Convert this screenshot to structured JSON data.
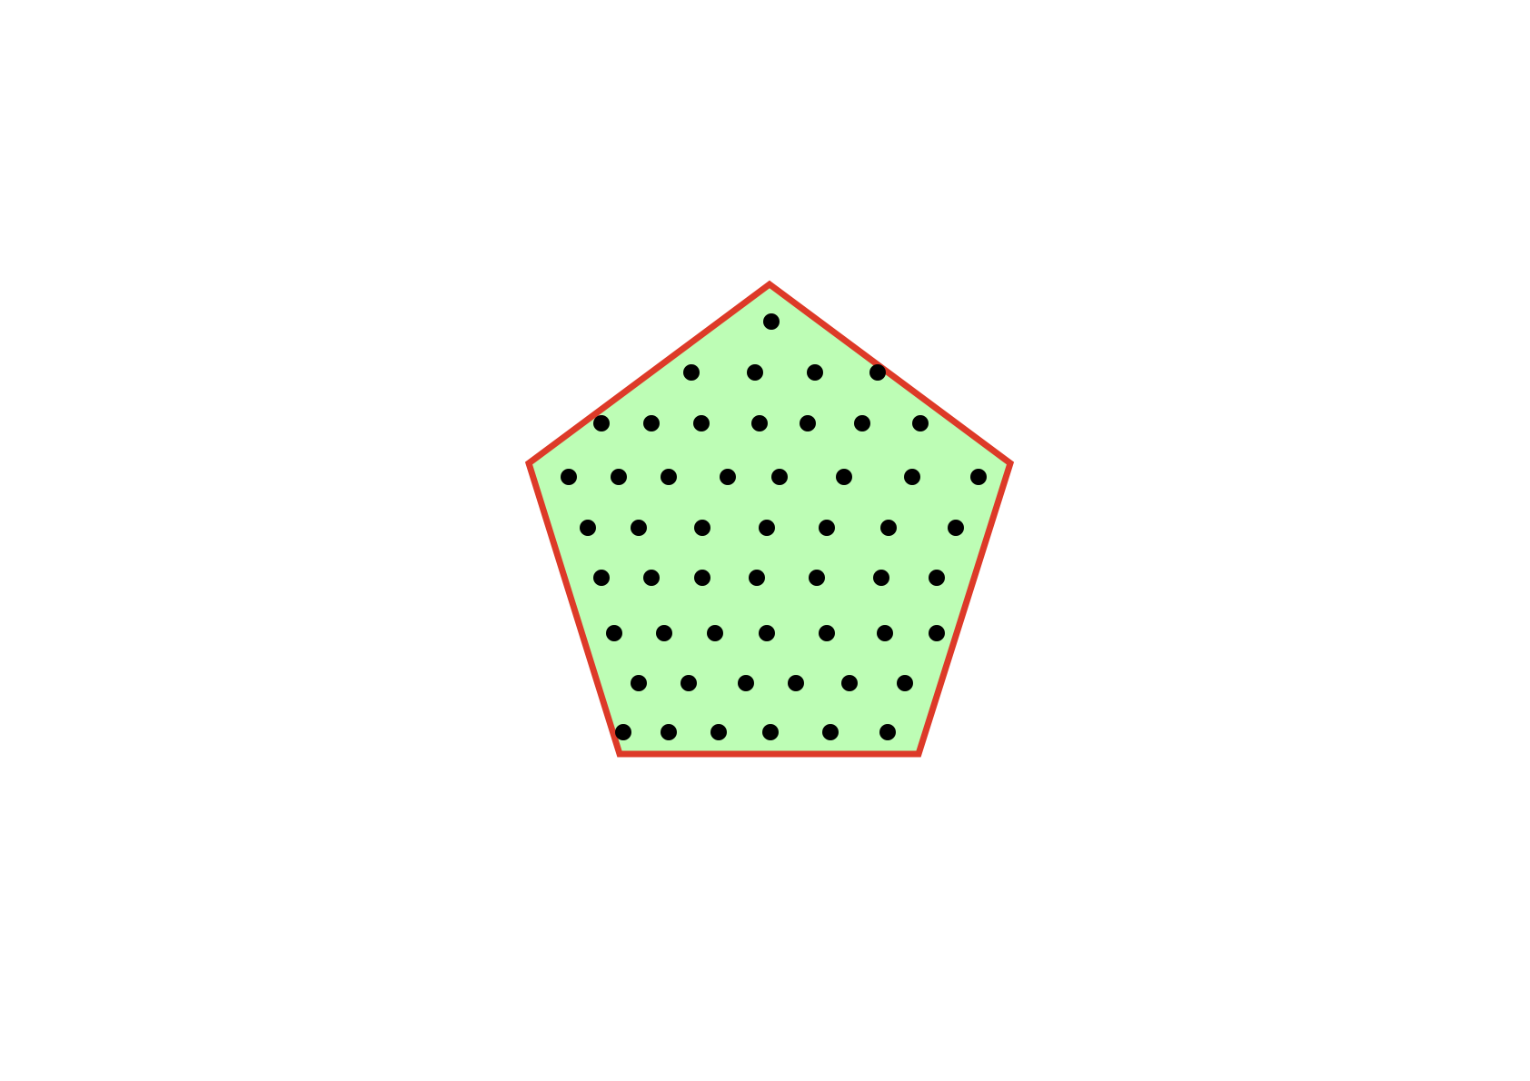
{
  "figure": {
    "description_shape": "pentagon",
    "fill_color": "#bdfdb5",
    "stroke_color": "#dd3a28",
    "dot_color": "#000000",
    "dot_rows": [
      1,
      4,
      7,
      8,
      7,
      7,
      7,
      6,
      6
    ],
    "total_dots": 53
  }
}
